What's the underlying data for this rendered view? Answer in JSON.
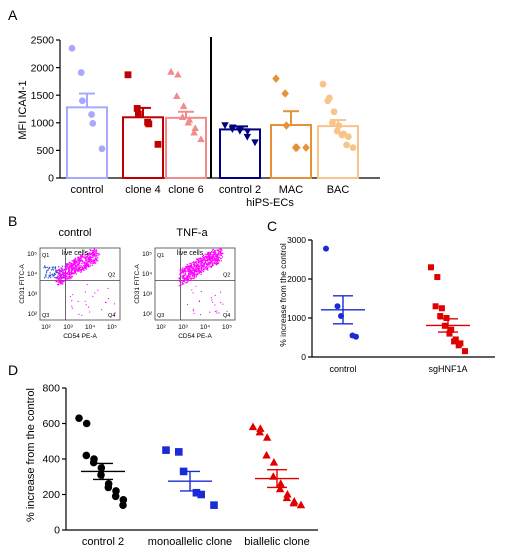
{
  "panel_labels": [
    "A",
    "B",
    "C",
    "D"
  ],
  "colors": {
    "control": "#a8a8ff",
    "clone4": "#c00000",
    "clone6": "#f28c8c",
    "control2": "#000080",
    "mac": "#e69138",
    "bac": "#f9c48a",
    "blue": "#1a2bd6",
    "red": "#e00000",
    "black": "#000000",
    "magenta": "#ff00ff"
  },
  "chart_data": [
    {
      "id": "A",
      "type": "bar",
      "ylabel": "MFI ICAM-1",
      "xlabel": "hiPS-ECs",
      "ylim": [
        0,
        2500
      ],
      "yticks": [
        0,
        500,
        1000,
        1500,
        2000,
        2500
      ],
      "divider_after": 2,
      "categories": [
        "control",
        "clone 4",
        "clone 6",
        "control 2",
        "MAC",
        "BAC"
      ],
      "means": [
        1280,
        1100,
        1090,
        880,
        960,
        940
      ],
      "sems": [
        250,
        170,
        110,
        55,
        250,
        110
      ],
      "markers": [
        "circle",
        "square",
        "triangle",
        "triangle-down",
        "diamond",
        "circle"
      ],
      "points": [
        [
          2350,
          1910,
          1400,
          1150,
          990,
          530
        ],
        [
          1870,
          1260,
          1160,
          1010,
          980,
          610
        ],
        [
          1920,
          1870,
          1480,
          1300,
          1100,
          1050,
          1000,
          900,
          820,
          700
        ],
        [
          960,
          920,
          890,
          870,
          860,
          850,
          750,
          650
        ],
        [
          1800,
          1530,
          950,
          550,
          550,
          550
        ],
        [
          1700,
          1450,
          1400,
          1200,
          1000,
          950,
          850,
          800,
          780,
          750,
          600,
          550
        ]
      ]
    },
    {
      "id": "B",
      "type": "scatter",
      "plots": [
        {
          "title": "control",
          "gate_label": "live cells"
        },
        {
          "title": "TNF-a",
          "gate_label": "live cells"
        }
      ],
      "ylabel": "CD31 FITC-A",
      "xlabel": "CD54 PE-A",
      "quadrants": [
        "Q1",
        "Q2",
        "Q3",
        "Q4"
      ],
      "log_ticks": [
        "10²",
        "10³",
        "10⁴",
        "10⁵"
      ]
    },
    {
      "id": "C",
      "type": "scatter",
      "ylabel": "% increase from the control",
      "ylim": [
        0,
        3000
      ],
      "yticks": [
        0,
        1000,
        2000,
        3000
      ],
      "categories": [
        "control",
        "sgHNF1A"
      ],
      "means": [
        1210,
        810
      ],
      "sems": [
        360,
        170
      ],
      "markers": [
        "circle",
        "square"
      ],
      "points": [
        [
          2780,
          1300,
          1050,
          550,
          520
        ],
        [
          2300,
          2050,
          1300,
          1250,
          1050,
          1000,
          800,
          700,
          600,
          450,
          400,
          350,
          300,
          150
        ]
      ]
    },
    {
      "id": "D",
      "type": "scatter",
      "ylabel": "% increase from the control",
      "ylim": [
        0,
        800
      ],
      "yticks": [
        0,
        200,
        400,
        600,
        800
      ],
      "categories": [
        "control 2",
        "monoallelic clone",
        "biallelic clone"
      ],
      "means": [
        330,
        275,
        290
      ],
      "sems": [
        45,
        55,
        50
      ],
      "markers": [
        "circle",
        "square",
        "triangle"
      ],
      "points": [
        [
          630,
          600,
          420,
          400,
          380,
          350,
          310,
          260,
          240,
          220,
          190,
          170,
          140
        ],
        [
          450,
          440,
          330,
          210,
          200,
          140
        ],
        [
          580,
          570,
          550,
          520,
          420,
          380,
          300,
          260,
          230,
          200,
          180,
          160,
          150,
          140
        ]
      ]
    }
  ]
}
